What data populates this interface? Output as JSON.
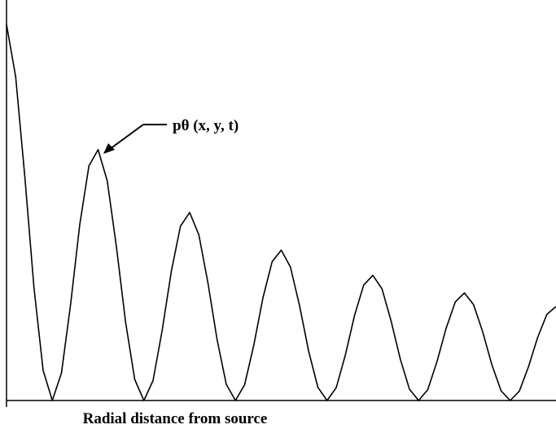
{
  "chart_data": {
    "type": "line",
    "x_label": "Radial distance from source",
    "annotation": "pθ (x, y, t)",
    "xlim": [
      0,
      6
    ],
    "ylim": [
      0,
      1.065
    ],
    "series": [
      {
        "color": "#000000",
        "x": [
          0,
          0.1,
          0.2,
          0.3,
          0.4,
          0.5,
          0.6,
          0.7,
          0.8,
          0.9,
          1,
          1.1,
          1.2,
          1.3,
          1.4,
          1.5,
          1.6,
          1.7,
          1.8,
          1.9,
          2,
          2.1,
          2.2,
          2.3,
          2.4,
          2.5,
          2.6,
          2.7,
          2.8,
          2.9,
          3,
          3.1,
          3.2,
          3.3,
          3.4,
          3.5,
          3.6,
          3.7,
          3.8,
          3.9,
          4,
          4.1,
          4.2,
          4.3,
          4.4,
          4.5,
          4.6,
          4.7,
          4.8,
          4.9,
          5,
          5.1,
          5.2,
          5.3,
          5.4,
          5.5,
          5.6,
          5.7,
          5.8,
          5.9,
          6
        ],
        "values": [
          1.0,
          0.861,
          0.595,
          0.3,
          0.08,
          0,
          0.073,
          0.256,
          0.468,
          0.624,
          0.667,
          0.584,
          0.409,
          0.209,
          0.056,
          0,
          0.053,
          0.187,
          0.344,
          0.464,
          0.5,
          0.441,
          0.312,
          0.161,
          0.043,
          0,
          0.042,
          0.147,
          0.273,
          0.369,
          0.4,
          0.355,
          0.252,
          0.13,
          0.035,
          0,
          0.034,
          0.121,
          0.226,
          0.307,
          0.333,
          0.297,
          0.211,
          0.11,
          0.03,
          0,
          0.029,
          0.103,
          0.192,
          0.262,
          0.286,
          0.255,
          0.182,
          0.095,
          0.026,
          0,
          0.025,
          0.09,
          0.168,
          0.229,
          0.25
        ]
      }
    ]
  }
}
